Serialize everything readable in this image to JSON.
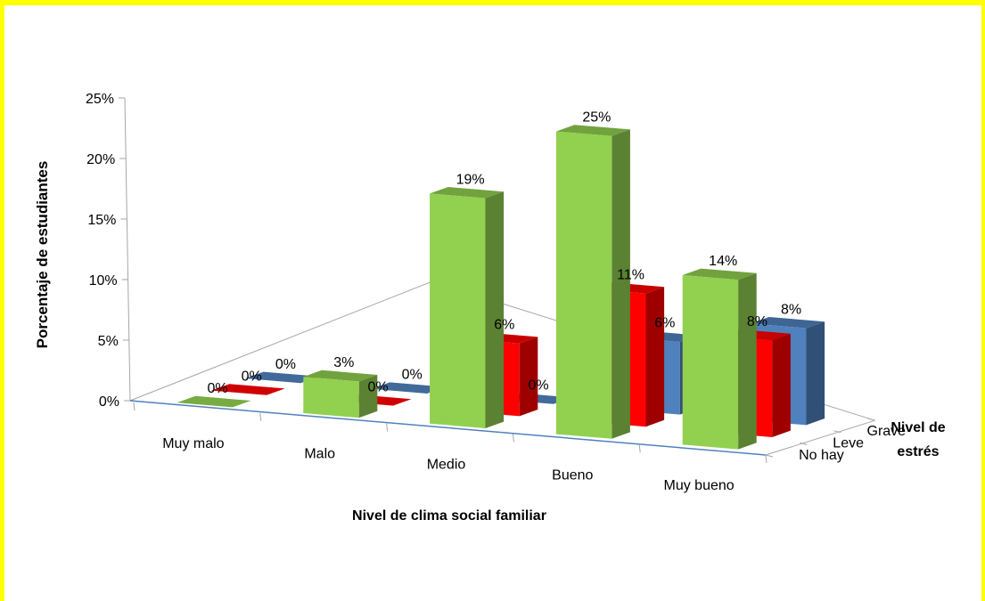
{
  "colors": {
    "frame": "#ffff00",
    "axis": "#a6a6a6",
    "floor_line": "#4f81bd",
    "No hay": "#92d050",
    "Leve": "#ff0000",
    "Grave": "#4f81bd"
  },
  "chart_data": {
    "type": "bar",
    "subtype": "3d-clustered-column",
    "title": "",
    "xlabel": "Nivel de clima social familiar",
    "ylabel": "Porcentaje de estudiantes",
    "zlabel_lines": [
      "Nivel de",
      "estrés"
    ],
    "categories": [
      "Muy malo",
      "Malo",
      "Medio",
      "Bueno",
      "Muy bueno"
    ],
    "ylim": [
      0,
      25
    ],
    "yticks": [
      "0%",
      "5%",
      "10%",
      "15%",
      "20%",
      "25%"
    ],
    "series": [
      {
        "name": "No hay",
        "values": [
          0,
          3,
          19,
          25,
          14
        ],
        "labels": [
          "0%",
          "3%",
          "19%",
          "25%",
          "14%"
        ]
      },
      {
        "name": "Leve",
        "values": [
          0,
          0,
          6,
          11,
          8
        ],
        "labels": [
          "0%",
          "0%",
          "6%",
          "11%",
          "8%"
        ]
      },
      {
        "name": "Grave",
        "values": [
          0,
          0,
          0,
          6,
          8
        ],
        "labels": [
          "0%",
          "0%",
          "0%",
          "6%",
          "8%"
        ]
      }
    ],
    "grid": false,
    "legend": "none"
  }
}
